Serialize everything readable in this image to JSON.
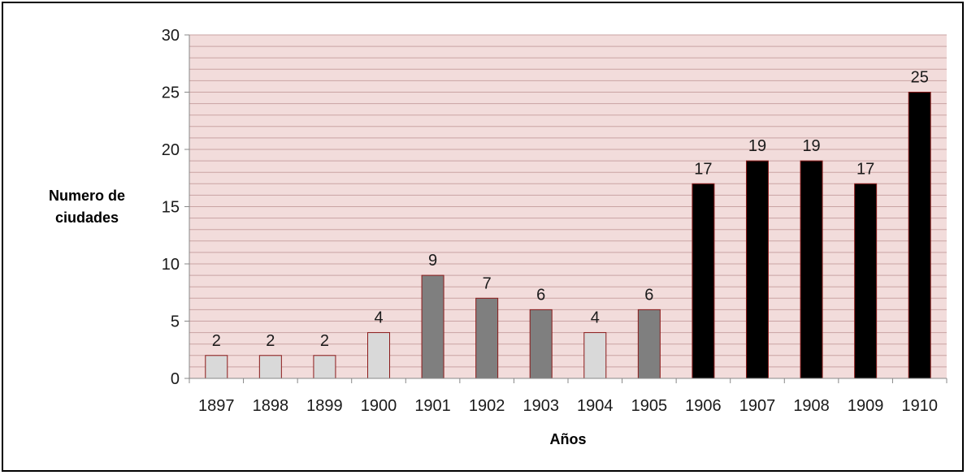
{
  "chart_data": {
    "type": "bar",
    "title": "",
    "xlabel": "Años",
    "ylabel_lines": [
      "Numero de",
      "ciudades"
    ],
    "categories": [
      "1897",
      "1898",
      "1899",
      "1900",
      "1901",
      "1902",
      "1903",
      "1904",
      "1905",
      "1906",
      "1907",
      "1908",
      "1909",
      "1910"
    ],
    "values": [
      2,
      2,
      2,
      4,
      9,
      7,
      6,
      4,
      6,
      17,
      19,
      19,
      17,
      25
    ],
    "data_labels": [
      "2",
      "2",
      "2",
      "4",
      "9",
      "7",
      "6",
      "4",
      "6",
      "17",
      "19",
      "19",
      "17",
      "25"
    ],
    "bar_colors": [
      "#d9d9d9",
      "#d9d9d9",
      "#d9d9d9",
      "#d9d9d9",
      "#7f7f7f",
      "#7f7f7f",
      "#7f7f7f",
      "#d9d9d9",
      "#7f7f7f",
      "#000000",
      "#000000",
      "#000000",
      "#000000",
      "#000000"
    ],
    "bar_edge_color": "#8b1a1a",
    "plot_background": "#f2dcdb",
    "gridline_color": "#c9a3a3",
    "ylim": [
      0,
      30
    ],
    "yticks": [
      0,
      5,
      10,
      15,
      20,
      25,
      30
    ],
    "ytick_labels": [
      "0",
      "5",
      "10",
      "15",
      "20",
      "25",
      "30"
    ],
    "minor_gridlines_every": 1,
    "grid": true,
    "legend": "none"
  }
}
